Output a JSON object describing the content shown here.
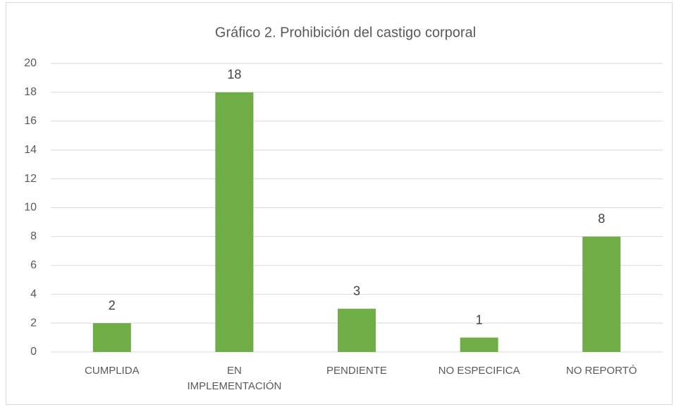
{
  "chart_data": {
    "type": "bar",
    "title": "Gráfico 2. Prohibición del castigo corporal",
    "categories": [
      "CUMPLIDA",
      "EN\nIMPLEMENTACIÓN",
      "PENDIENTE",
      "NO ESPECIFICA",
      "NO REPORTÓ"
    ],
    "values": [
      2,
      18,
      3,
      1,
      8
    ],
    "color": "#70ad47",
    "ylim": [
      0,
      20
    ],
    "yticks": [
      0,
      2,
      4,
      6,
      8,
      10,
      12,
      14,
      16,
      18,
      20
    ],
    "grid": true
  }
}
